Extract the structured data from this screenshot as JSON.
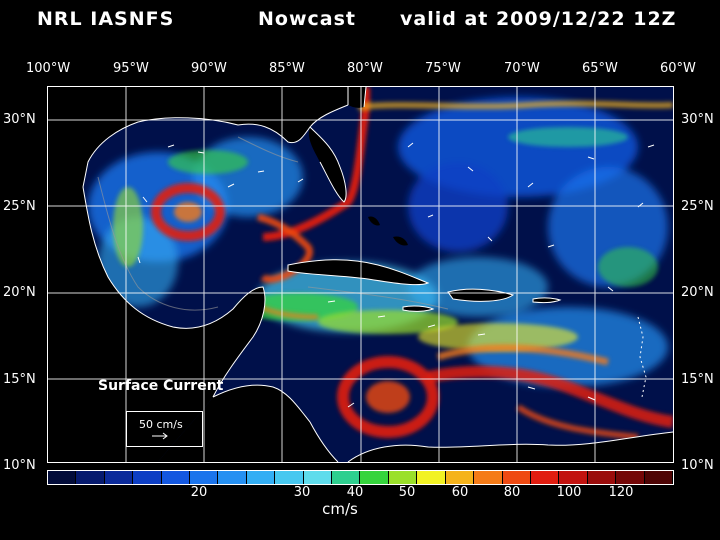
{
  "title": {
    "model": "NRL IASNFS",
    "mode": "Nowcast",
    "valid": "valid at 2009/12/22 12Z"
  },
  "axes": {
    "lon_labels": [
      "100°W",
      "95°W",
      "90°W",
      "85°W",
      "80°W",
      "75°W",
      "70°W",
      "65°W",
      "60°W"
    ],
    "lat_labels": [
      "30°N",
      "25°N",
      "20°N",
      "15°N",
      "10°N"
    ]
  },
  "map": {
    "label": "Surface Current",
    "reference_vector": "50 cm/s",
    "background_color": "#00104a",
    "land_color": "#000000",
    "coast_color": "#ffffff"
  },
  "colorbar": {
    "units": "cm/s",
    "ticks": [
      "20",
      "30",
      "40",
      "50",
      "60",
      "80",
      "100",
      "120"
    ],
    "colors": [
      "#020c3a",
      "#061a6e",
      "#0b2a9a",
      "#0d3ec4",
      "#1357e0",
      "#1b74ec",
      "#2590f2",
      "#33aef4",
      "#47c8f0",
      "#5fdcec",
      "#2ecf8f",
      "#35d43c",
      "#9ae02a",
      "#f2f223",
      "#f5b31b",
      "#f57b17",
      "#ef4a12",
      "#e11d10",
      "#c2120f",
      "#9a0c0b",
      "#740707",
      "#4e0404"
    ]
  }
}
